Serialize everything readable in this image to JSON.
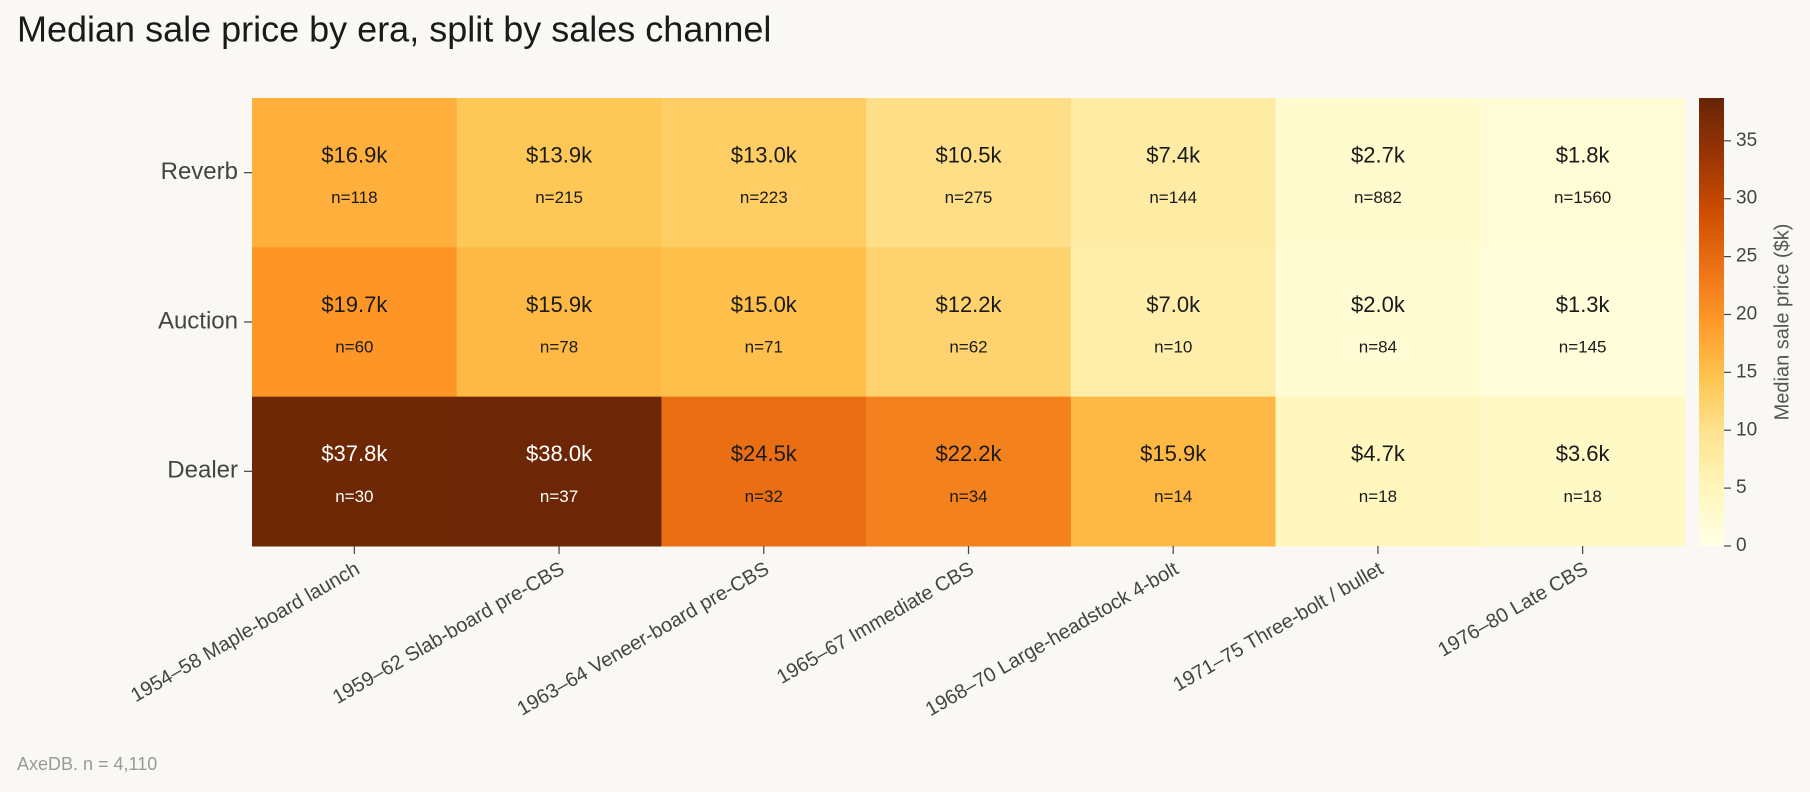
{
  "chart_data": {
    "type": "heatmap",
    "title": "Median sale price by era, split by sales channel",
    "x_categories": [
      "1954–58 Maple-board launch",
      "1959–62 Slab-board pre-CBS",
      "1963–64 Veneer-board pre-CBS",
      "1965–67 Immediate CBS",
      "1968–70 Large-headstock 4-bolt",
      "1971–75 Three-bolt / bullet",
      "1976–80 Late CBS"
    ],
    "y_categories": [
      "Reverb",
      "Auction",
      "Dealer"
    ],
    "values": [
      [
        16.9,
        13.9,
        13.0,
        10.5,
        7.4,
        2.7,
        1.8
      ],
      [
        19.7,
        15.9,
        15.0,
        12.2,
        7.0,
        2.0,
        1.3
      ],
      [
        37.8,
        38.0,
        24.5,
        22.2,
        15.9,
        4.7,
        3.6
      ]
    ],
    "value_labels": [
      [
        "$16.9k",
        "$13.9k",
        "$13.0k",
        "$10.5k",
        "$7.4k",
        "$2.7k",
        "$1.8k"
      ],
      [
        "$19.7k",
        "$15.9k",
        "$15.0k",
        "$12.2k",
        "$7.0k",
        "$2.0k",
        "$1.3k"
      ],
      [
        "$37.8k",
        "$38.0k",
        "$24.5k",
        "$22.2k",
        "$15.9k",
        "$4.7k",
        "$3.6k"
      ]
    ],
    "counts": [
      [
        118,
        215,
        223,
        275,
        144,
        882,
        1560
      ],
      [
        60,
        78,
        71,
        62,
        10,
        84,
        145
      ],
      [
        30,
        37,
        32,
        34,
        14,
        18,
        18
      ]
    ],
    "count_labels": [
      [
        "n=118",
        "n=215",
        "n=223",
        "n=275",
        "n=144",
        "n=882",
        "n=1560"
      ],
      [
        "n=60",
        "n=78",
        "n=71",
        "n=62",
        "n=10",
        "n=84",
        "n=145"
      ],
      [
        "n=30",
        "n=37",
        "n=32",
        "n=34",
        "n=14",
        "n=18",
        "n=18"
      ]
    ],
    "colorbar_label": "Median sale price ($k)",
    "clim": [
      0,
      38.7
    ],
    "cticks": [
      0,
      5,
      10,
      15,
      20,
      25,
      30,
      35
    ],
    "colorscale": [
      "#ffffe5",
      "#fff7bc",
      "#fee391",
      "#fec44f",
      "#fe9929",
      "#ec7014",
      "#cc4c02",
      "#993404",
      "#662506"
    ],
    "footnote": "AxeDB. n = 4,110"
  }
}
